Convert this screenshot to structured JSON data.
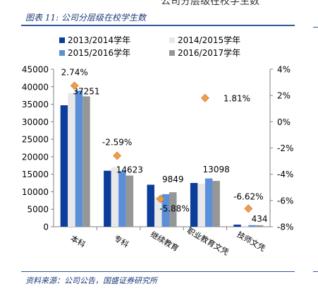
{
  "header": {
    "top_fragment": "公司分层级在校学生数"
  },
  "caption": "图表 11:  公司分层级在校学生数",
  "source": "资料来源：公司公告，国盛证券研究所",
  "chart_data": {
    "type": "bar",
    "categories": [
      "本科",
      "专科",
      "继续教育",
      "职业教育文凭",
      "技师文凭"
    ],
    "series": [
      {
        "name": "2013/2014学年",
        "color": "#0c3c9c",
        "values": [
          34700,
          16000,
          12000,
          12500,
          600
        ]
      },
      {
        "name": "2014/2015学年",
        "color": "#e8e8e8",
        "values": [
          38200,
          17000,
          8500,
          12300,
          300
        ]
      },
      {
        "name": "2015/2016学年",
        "color": "#5b8fd8",
        "values": [
          38900,
          15900,
          9300,
          13800,
          450
        ]
      },
      {
        "name": "2016/2017学年",
        "color": "#969696",
        "values": [
          37251,
          14623,
          9849,
          13098,
          434
        ]
      }
    ],
    "value_labels": [
      "37251",
      "14623",
      "9849",
      "13098",
      "434"
    ],
    "growth": {
      "color": "#f09a4a",
      "values": [
        2.74,
        -2.59,
        -5.88,
        1.81,
        -6.62
      ],
      "labels": [
        "2.74%",
        "-2.59%",
        "-5.88%",
        "1.81%",
        "-6.62%"
      ]
    },
    "y_left": {
      "min": 0,
      "max": 45000,
      "step": 5000,
      "ticks": [
        "0",
        "5000",
        "10000",
        "15000",
        "20000",
        "25000",
        "30000",
        "35000",
        "40000",
        "45000"
      ]
    },
    "y_right": {
      "min": -8,
      "max": 4,
      "step": 2,
      "ticks": [
        "-8%",
        "-6%",
        "-4%",
        "-2%",
        "0%",
        "2%",
        "4%"
      ]
    },
    "legend": {
      "placement": "top"
    },
    "grid": false
  }
}
